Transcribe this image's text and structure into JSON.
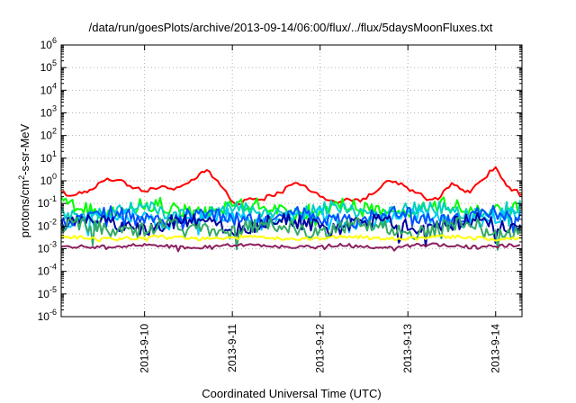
{
  "chart_data": {
    "type": "line",
    "title": "/data/run/goesPlots/archive/2013-09-14/06:00/flux/../flux/5daysMoonFluxes.txt",
    "xlabel": "Coordinated Universal Time (UTC)",
    "ylabel_parts": [
      "protons/cm",
      "2",
      "-s-sr-MeV"
    ],
    "y_scale": "log",
    "ylim": [
      1e-06,
      1000000
    ],
    "y_ticks": [
      {
        "exp": "-6",
        "value": 1e-06
      },
      {
        "exp": "-5",
        "value": 1e-05
      },
      {
        "exp": "-4",
        "value": 0.0001
      },
      {
        "exp": "-3",
        "value": 0.001
      },
      {
        "exp": "-2",
        "value": 0.01
      },
      {
        "exp": "-1",
        "value": 0.1
      },
      {
        "exp": "0",
        "value": 1
      },
      {
        "exp": "1",
        "value": 10
      },
      {
        "exp": "2",
        "value": 100
      },
      {
        "exp": "3",
        "value": 1000
      },
      {
        "exp": "4",
        "value": 10000
      },
      {
        "exp": "5",
        "value": 100000
      },
      {
        "exp": "6",
        "value": 1000000
      }
    ],
    "y_tick_base": "10",
    "xlim": [
      "2013-09-09 01:12",
      "2013-09-14 07:12"
    ],
    "x_ticks": [
      "2013-9-10",
      "2013-9-11",
      "2013-9-12",
      "2013-9-13",
      "2013-9-14"
    ],
    "grid": true,
    "legend": "none",
    "series": [
      {
        "color": "#ff0000",
        "level": 0.3,
        "x": [
          "2013-09-09 01:12",
          "2013-09-09 04:00",
          "2013-09-09 09:00",
          "2013-09-09 13:00",
          "2013-09-09 17:00",
          "2013-09-09 20:00",
          "2013-09-10 00:00",
          "2013-09-10 04:00",
          "2013-09-10 08:00",
          "2013-09-10 12:00",
          "2013-09-10 15:00",
          "2013-09-10 17:00",
          "2013-09-10 20:00",
          "2013-09-10 23:00",
          "2013-09-11 01:00",
          "2013-09-11 04:00",
          "2013-09-11 08:00",
          "2013-09-11 13:00",
          "2013-09-11 17:00",
          "2013-09-11 20:00",
          "2013-09-12 00:00",
          "2013-09-12 04:00",
          "2013-09-12 08:00",
          "2013-09-12 11:00",
          "2013-09-12 15:00",
          "2013-09-12 19:00",
          "2013-09-12 23:00",
          "2013-09-13 02:00",
          "2013-09-13 06:00",
          "2013-09-13 09:00",
          "2013-09-13 12:00",
          "2013-09-13 15:00",
          "2013-09-13 17:00",
          "2013-09-13 20:00",
          "2013-09-14 00:00",
          "2013-09-14 03:00",
          "2013-09-14 07:12"
        ],
        "y": [
          0.3,
          0.22,
          0.4,
          1.0,
          1.1,
          0.6,
          0.35,
          0.5,
          0.4,
          0.8,
          2.0,
          3.0,
          1.0,
          0.2,
          0.08,
          0.15,
          0.15,
          0.3,
          0.8,
          0.6,
          0.2,
          0.12,
          0.15,
          0.12,
          0.3,
          1.0,
          0.6,
          0.3,
          0.15,
          0.2,
          0.8,
          0.4,
          0.3,
          1.0,
          4.0,
          0.6,
          0.25
        ]
      },
      {
        "color": "#00ff00",
        "level": 0.06
      },
      {
        "color": "#00d0c0",
        "level": 0.045
      },
      {
        "color": "#00ccff",
        "level": 0.02
      },
      {
        "color": "#0050ff",
        "level": 0.025
      },
      {
        "color": "#0000a0",
        "level": 0.012
      },
      {
        "color": "#33aa66",
        "level": 0.008
      },
      {
        "color": "#ffff00",
        "level": 0.003
      },
      {
        "color": "#8b2060",
        "level": 0.0013
      }
    ]
  }
}
